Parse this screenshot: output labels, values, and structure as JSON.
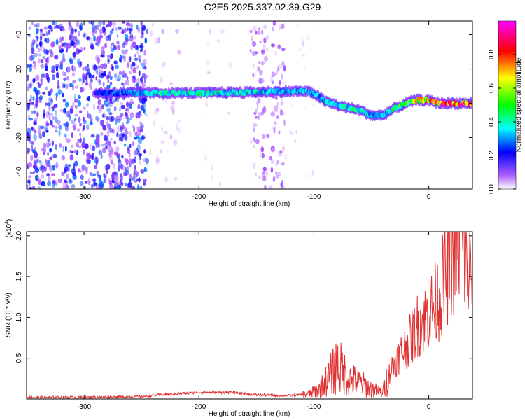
{
  "title": "C2E5.2025.337.02.39.G29",
  "chart_data": [
    {
      "type": "heatmap",
      "xlabel": "Height of straight line (km)",
      "ylabel": "Frequency (Hz)",
      "xlim": [
        -350,
        38
      ],
      "ylim": [
        -50,
        48
      ],
      "xticks": [
        -300,
        -200,
        -100,
        0
      ],
      "xtick_labels": [
        "-300",
        "-200",
        "-100",
        "0"
      ],
      "yticks": [
        -40,
        -20,
        0,
        20,
        40
      ],
      "ytick_labels": [
        "-40",
        "-20",
        "0",
        "20",
        "40"
      ],
      "colorbar": {
        "label": "Normalized spectral amplitude",
        "range": [
          0,
          1
        ],
        "ticks": [
          0,
          0.2,
          0.4,
          0.6,
          0.8
        ],
        "tick_labels": [
          "0.0",
          "0.2",
          "0.4",
          "0.6",
          "0.8"
        ],
        "colormap": [
          "#ffffff",
          "#a040ff",
          "#0000ff",
          "#00ffff",
          "#00ff00",
          "#ffff00",
          "#ff0000",
          "#ff00ff"
        ]
      },
      "ridge": [
        {
          "x": -290,
          "f": 6,
          "amp": 0.3
        },
        {
          "x": -240,
          "f": 6,
          "amp": 0.45
        },
        {
          "x": -200,
          "f": 6,
          "amp": 0.5
        },
        {
          "x": -150,
          "f": 6.5,
          "amp": 0.45
        },
        {
          "x": -110,
          "f": 7,
          "amp": 0.45
        },
        {
          "x": -100,
          "f": 6,
          "amp": 0.4
        },
        {
          "x": -90,
          "f": 1,
          "amp": 0.45
        },
        {
          "x": -75,
          "f": -2,
          "amp": 0.5
        },
        {
          "x": -60,
          "f": -4,
          "amp": 0.5
        },
        {
          "x": -50,
          "f": -7,
          "amp": 0.4
        },
        {
          "x": -40,
          "f": -7,
          "amp": 0.4
        },
        {
          "x": -30,
          "f": -3,
          "amp": 0.55
        },
        {
          "x": -20,
          "f": 0,
          "amp": 0.6
        },
        {
          "x": -10,
          "f": 2,
          "amp": 0.75
        },
        {
          "x": 0,
          "f": 1.5,
          "amp": 0.8
        },
        {
          "x": 10,
          "f": 0,
          "amp": 0.9
        },
        {
          "x": 38,
          "f": 0,
          "amp": 0.9
        }
      ],
      "noise_regions": [
        {
          "x": [
            -350,
            -245
          ],
          "f": [
            -50,
            48
          ],
          "level": 0.28
        },
        {
          "x": [
            -245,
            -215
          ],
          "f": [
            -50,
            48
          ],
          "level": 0.06
        },
        {
          "x": [
            -195,
            -170
          ],
          "f": [
            -50,
            48
          ],
          "level": 0.04
        },
        {
          "x": [
            -155,
            -125
          ],
          "f": [
            -50,
            48
          ],
          "level": 0.13
        },
        {
          "x": [
            -125,
            -100
          ],
          "f": [
            -50,
            48
          ],
          "level": 0.04
        }
      ]
    },
    {
      "type": "line",
      "xlabel": "Height of straight line (km)",
      "ylabel": "SNR (10 * v/v)",
      "y_multiplier": "(x10",
      "y_multiplier_exponent": "4",
      "y_multiplier_close": ")",
      "xlim": [
        -350,
        38
      ],
      "ylim": [
        0,
        2.05
      ],
      "xticks": [
        -300,
        -200,
        -100,
        0
      ],
      "xtick_labels": [
        "-300",
        "-200",
        "-100",
        "0"
      ],
      "yticks": [
        0.5,
        1.0,
        1.5,
        2.0
      ],
      "ytick_labels": [
        "0.5",
        "1.0",
        "1.5",
        "2.0"
      ],
      "series": [
        {
          "color": "#e03030",
          "x": [
            -350,
            -300,
            -250,
            -235,
            -200,
            -170,
            -150,
            -120,
            -105,
            -95,
            -85,
            -80,
            -75,
            -70,
            -60,
            -50,
            -40,
            -35,
            -30,
            -25,
            -20,
            -15,
            -10,
            -5,
            0,
            5,
            10,
            15,
            20,
            25,
            30,
            33,
            38
          ],
          "y": [
            0.02,
            0.02,
            0.03,
            0.05,
            0.08,
            0.08,
            0.05,
            0.04,
            0.06,
            0.12,
            0.3,
            0.42,
            0.35,
            0.25,
            0.2,
            0.12,
            0.08,
            0.3,
            0.45,
            0.55,
            0.65,
            0.75,
            0.9,
            0.95,
            1.05,
            1.15,
            1.3,
            1.55,
            1.75,
            1.92,
            1.9,
            1.55,
            1.55
          ]
        }
      ]
    }
  ]
}
